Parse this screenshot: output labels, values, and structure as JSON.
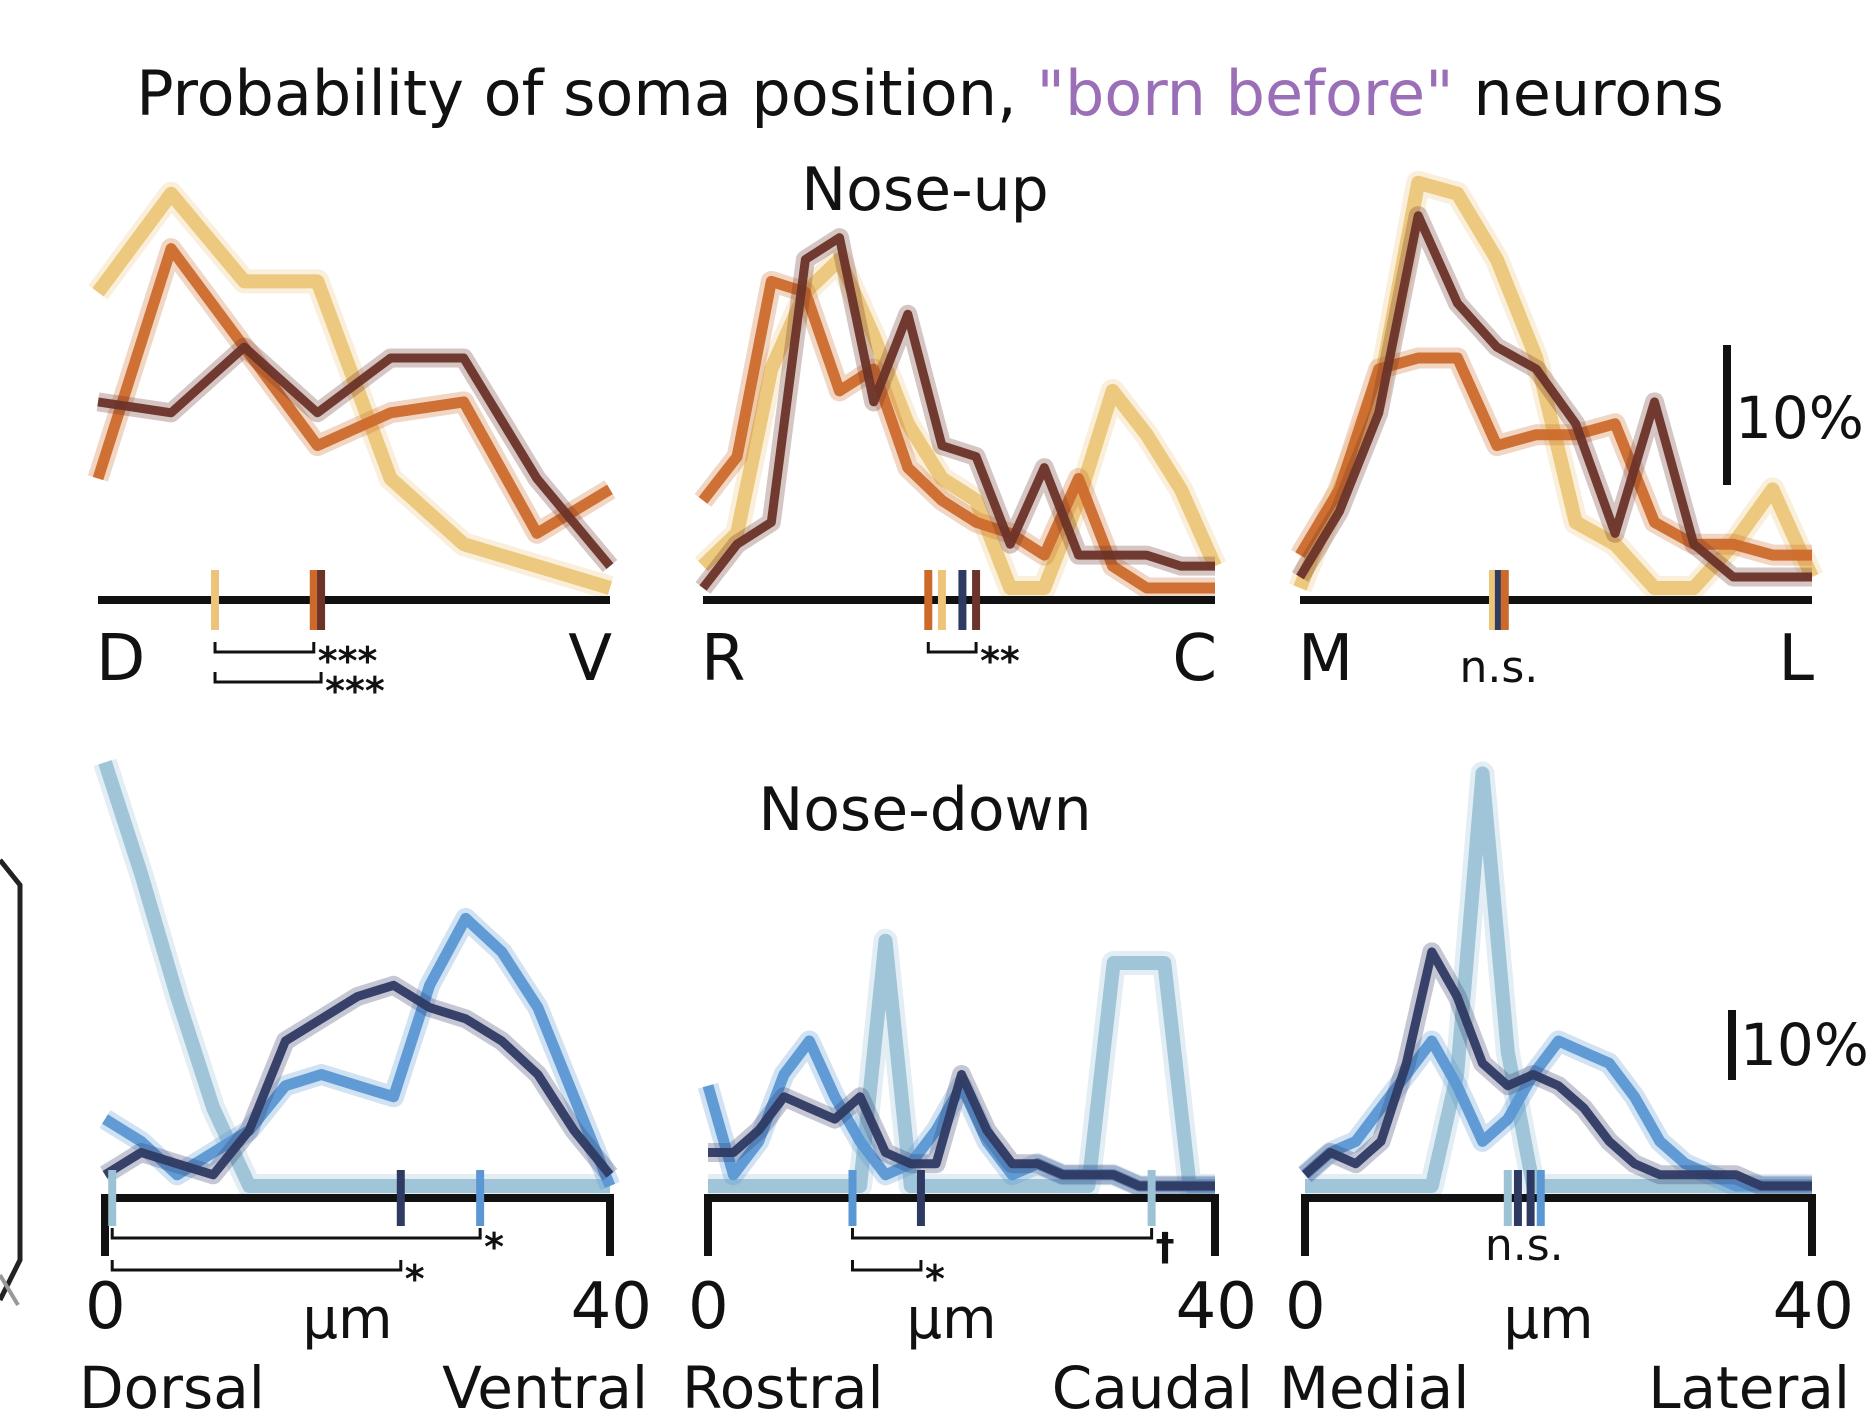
{
  "title": {
    "prefix": "Probability of soma position, ",
    "highlight": "\"born before\"",
    "suffix": " neurons",
    "highlight_color": "#9b6fb8"
  },
  "colors": {
    "up_light": "#ecc57a",
    "up_mid": "#cc6a2c",
    "up_dark": "#6b3329",
    "down_light": "#9cc2d6",
    "down_mid": "#5b97d4",
    "down_dark": "#2f3a63"
  },
  "scale_bar": {
    "label_up": "10%",
    "label_down": "10%",
    "value_percent": 10
  },
  "chart_data": [
    {
      "id": "up-dv",
      "group": "Nose-up",
      "group_title": "Nose-up",
      "type": "line",
      "x": [
        0,
        1,
        2,
        3,
        4,
        5,
        6,
        7
      ],
      "ylim": [
        0,
        40
      ],
      "series": [
        {
          "color_key": "up_light",
          "values": [
            27,
            36,
            28,
            28,
            10,
            4,
            2,
            0
          ]
        },
        {
          "color_key": "up_mid",
          "values": [
            10,
            31,
            22,
            13,
            16,
            17,
            5,
            9
          ]
        },
        {
          "color_key": "up_dark",
          "values": [
            17,
            16,
            22,
            16,
            21,
            21,
            10,
            2
          ]
        }
      ],
      "axis_letters": [
        "D",
        "V"
      ],
      "markers": [
        {
          "x": 1.6,
          "color_key": "up_light"
        },
        {
          "x": 2.95,
          "color_key": "up_mid"
        },
        {
          "x": 3.05,
          "color_key": "up_dark"
        }
      ],
      "brackets": [
        {
          "x1": 1.6,
          "x2": 2.95,
          "level": 1,
          "label": "***"
        },
        {
          "x1": 1.6,
          "x2": 3.05,
          "level": 2,
          "label": "***"
        }
      ]
    },
    {
      "id": "up-rc",
      "group": "Nose-up",
      "type": "line",
      "x": [
        0,
        1,
        2,
        3,
        4,
        5,
        6,
        7,
        8,
        9,
        10,
        11,
        12,
        13,
        14,
        15
      ],
      "ylim": [
        0,
        40
      ],
      "series": [
        {
          "color_key": "up_light",
          "values": [
            2,
            5,
            20,
            27,
            30,
            23,
            15,
            10,
            8,
            0,
            0,
            8,
            18,
            14,
            9,
            2
          ]
        },
        {
          "color_key": "up_mid",
          "values": [
            8,
            12,
            28,
            27,
            18,
            20,
            11,
            8,
            6,
            5,
            3,
            10,
            2,
            0,
            0,
            0
          ]
        },
        {
          "color_key": "up_dark",
          "values": [
            0,
            4,
            6,
            30,
            32,
            17,
            25,
            13,
            12,
            4,
            11,
            3,
            3,
            3,
            2,
            2
          ]
        }
      ],
      "axis_letters": [
        "R",
        "C"
      ],
      "markers": [
        {
          "x": 6.6,
          "color_key": "up_mid"
        },
        {
          "x": 7.0,
          "color_key": "up_light"
        },
        {
          "x": 7.6,
          "color_key": "down_dark"
        },
        {
          "x": 8.0,
          "color_key": "up_dark"
        }
      ],
      "brackets": [
        {
          "x1": 6.6,
          "x2": 8.0,
          "level": 1,
          "label": "**"
        }
      ]
    },
    {
      "id": "up-ml",
      "group": "Nose-up",
      "type": "line",
      "x": [
        0,
        1,
        2,
        3,
        4,
        5,
        6,
        7,
        8,
        9,
        10,
        11,
        12,
        13
      ],
      "ylim": [
        0,
        40
      ],
      "series": [
        {
          "color_key": "up_light",
          "values": [
            0,
            9,
            18,
            37,
            36,
            30,
            21,
            6,
            4,
            0,
            0,
            4,
            9,
            1
          ]
        },
        {
          "color_key": "up_mid",
          "values": [
            3,
            9,
            20,
            21,
            21,
            13,
            14,
            14,
            15,
            6,
            4,
            4,
            3,
            3
          ]
        },
        {
          "color_key": "up_dark",
          "values": [
            1,
            7,
            16,
            34,
            26,
            22,
            20,
            15,
            5,
            17,
            4,
            1,
            1,
            1
          ]
        }
      ],
      "axis_letters": [
        "M",
        "L"
      ],
      "markers": [
        {
          "x": 4.9,
          "color_key": "up_light"
        },
        {
          "x": 5.05,
          "color_key": "down_dark"
        },
        {
          "x": 5.2,
          "color_key": "up_mid"
        }
      ],
      "ns": "n.s."
    },
    {
      "id": "down-dv",
      "group": "Nose-down",
      "group_title": "Nose-down",
      "type": "line",
      "x": [
        0,
        1,
        2,
        3,
        4,
        5,
        6,
        7,
        8,
        9,
        10,
        11,
        12,
        13,
        14
      ],
      "ylim": [
        0,
        40
      ],
      "series": [
        {
          "color_key": "down_light",
          "values": [
            38,
            28,
            17,
            7,
            0,
            0,
            0,
            0,
            0,
            0,
            0,
            0,
            0,
            0,
            0
          ]
        },
        {
          "color_key": "down_mid",
          "values": [
            6,
            4,
            1,
            3,
            5,
            9,
            10,
            9,
            8,
            18,
            24,
            21,
            16,
            8,
            0
          ]
        },
        {
          "color_key": "down_dark",
          "values": [
            1,
            3,
            2,
            1,
            5,
            13,
            15,
            17,
            18,
            16,
            15,
            13,
            10,
            5,
            1
          ]
        }
      ],
      "tick_labels": [
        "0",
        "40"
      ],
      "unit_label": "μm",
      "axis_labels": [
        "Dorsal",
        "Ventral"
      ],
      "markers": [
        {
          "x": 0.2,
          "color_key": "down_light"
        },
        {
          "x": 8.2,
          "color_key": "down_dark"
        },
        {
          "x": 10.4,
          "color_key": "down_mid"
        }
      ],
      "brackets": [
        {
          "x1": 0.2,
          "x2": 10.4,
          "level": 1,
          "label": "*"
        },
        {
          "x1": 0.2,
          "x2": 8.2,
          "level": 2,
          "label": "*"
        }
      ]
    },
    {
      "id": "down-rc",
      "group": "Nose-down",
      "type": "line",
      "x": [
        0,
        1,
        2,
        3,
        4,
        5,
        6,
        7,
        8,
        9,
        10,
        11,
        12,
        13,
        14,
        15,
        16,
        17,
        18,
        19,
        20
      ],
      "ylim": [
        0,
        40
      ],
      "series": [
        {
          "color_key": "down_light",
          "values": [
            0,
            0,
            0,
            0,
            0,
            0,
            0,
            22,
            0,
            0,
            0,
            0,
            0,
            0,
            0,
            0,
            20,
            20,
            20,
            0,
            0
          ]
        },
        {
          "color_key": "down_mid",
          "values": [
            9,
            1,
            4,
            10,
            13,
            8,
            4,
            1,
            2,
            5,
            9,
            4,
            1,
            2,
            1,
            1,
            1,
            0,
            0,
            0,
            0
          ]
        },
        {
          "color_key": "down_dark",
          "values": [
            3,
            3,
            5,
            8,
            7,
            6,
            8,
            3,
            2,
            2,
            10,
            5,
            2,
            2,
            1,
            1,
            1,
            0,
            0,
            0,
            0
          ]
        }
      ],
      "tick_labels": [
        "0",
        "40"
      ],
      "unit_label": "μm",
      "axis_labels": [
        "Rostral",
        "Caudal"
      ],
      "markers": [
        {
          "x": 5.7,
          "color_key": "down_mid"
        },
        {
          "x": 8.4,
          "color_key": "down_dark"
        },
        {
          "x": 17.5,
          "color_key": "down_light"
        }
      ],
      "brackets": [
        {
          "x1": 5.7,
          "x2": 17.5,
          "level": 1,
          "label": "†"
        },
        {
          "x1": 5.7,
          "x2": 8.4,
          "level": 2,
          "label": "*"
        }
      ]
    },
    {
      "id": "down-ml",
      "group": "Nose-down",
      "type": "line",
      "x": [
        0,
        1,
        2,
        3,
        4,
        5,
        6,
        7,
        8,
        9,
        10,
        11,
        12,
        13,
        14,
        15,
        16,
        17,
        18,
        19,
        20
      ],
      "ylim": [
        0,
        40
      ],
      "series": [
        {
          "color_key": "down_light",
          "values": [
            0,
            0,
            0,
            0,
            0,
            0,
            10,
            37,
            12,
            0,
            0,
            0,
            0,
            0,
            0,
            0,
            0,
            0,
            0,
            0,
            0
          ]
        },
        {
          "color_key": "down_mid",
          "values": [
            1,
            3,
            4,
            7,
            10,
            13,
            9,
            4,
            6,
            10,
            13,
            12,
            11,
            8,
            4,
            2,
            1,
            0,
            0,
            0,
            0
          ]
        },
        {
          "color_key": "down_dark",
          "values": [
            1,
            3,
            2,
            4,
            11,
            21,
            17,
            11,
            9,
            10,
            9,
            7,
            4,
            2,
            1,
            1,
            1,
            1,
            0,
            0,
            0
          ]
        }
      ],
      "tick_labels": [
        "0",
        "40"
      ],
      "unit_label": "μm",
      "axis_labels": [
        "Medial",
        "Lateral"
      ],
      "markers": [
        {
          "x": 8.0,
          "color_key": "down_light"
        },
        {
          "x": 8.4,
          "color_key": "down_dark"
        },
        {
          "x": 8.9,
          "color_key": "down_dark"
        },
        {
          "x": 9.3,
          "color_key": "down_mid"
        }
      ],
      "ns": "n.s."
    }
  ]
}
